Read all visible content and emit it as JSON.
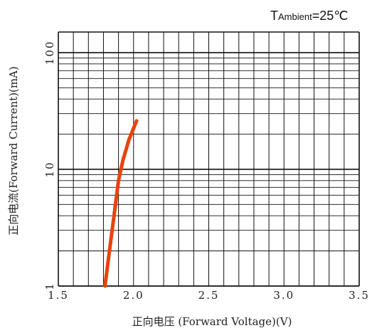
{
  "chart_data": {
    "type": "line",
    "title": "",
    "condition": {
      "symbol": "T",
      "subscript": "Ambient",
      "value": "=25℃"
    },
    "xlabel": "正向电压 (Forward Voltage)(V)",
    "ylabel": "正向电流(Forward Current)(mA)",
    "xlim": [
      1.5,
      3.5
    ],
    "ylim": [
      1,
      150
    ],
    "yscale": "log",
    "grid": true,
    "x_ticks": [
      1.5,
      2.0,
      2.5,
      3.0,
      3.5
    ],
    "x_tick_labels": [
      "1.5",
      "2.0",
      "2.5",
      "3.0",
      "3.5"
    ],
    "y_ticks": [
      1,
      10,
      100
    ],
    "y_tick_labels": [
      "1",
      "10",
      "100"
    ],
    "series": [
      {
        "color": "#e8430c",
        "x": [
          1.81,
          1.84,
          1.87,
          1.9,
          1.93,
          1.97,
          2.02
        ],
        "y": [
          1,
          2,
          4,
          8,
          12,
          18,
          26
        ]
      }
    ]
  }
}
